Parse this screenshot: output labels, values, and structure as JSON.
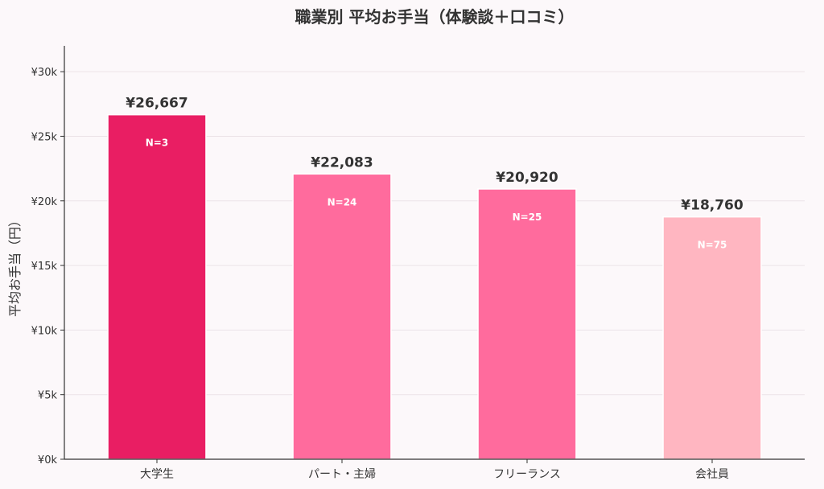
{
  "chart_data": {
    "type": "bar",
    "title": "職業別 平均お手当（体験談＋口コミ）",
    "xlabel": "",
    "ylabel": "平均お手当（円）",
    "categories": [
      "大学生",
      "パート・主婦",
      "フリーランス",
      "会社員"
    ],
    "values": [
      26667,
      22083,
      20920,
      18760
    ],
    "value_labels": [
      "¥26,667",
      "¥22,083",
      "¥20,920",
      "¥18,760"
    ],
    "sample_labels": [
      "N=3",
      "N=24",
      "N=25",
      "N=75"
    ],
    "bar_colors": [
      "#e91e63",
      "#ff6b9d",
      "#ff6b9d",
      "#ffb6c1"
    ],
    "ylim": [
      0,
      32000
    ],
    "yticks": [
      0,
      5000,
      10000,
      15000,
      20000,
      25000,
      30000
    ],
    "ytick_labels": [
      "¥0k",
      "¥5k",
      "¥10k",
      "¥15k",
      "¥20k",
      "¥25k",
      "¥30k"
    ],
    "grid": true,
    "legend": "none"
  }
}
